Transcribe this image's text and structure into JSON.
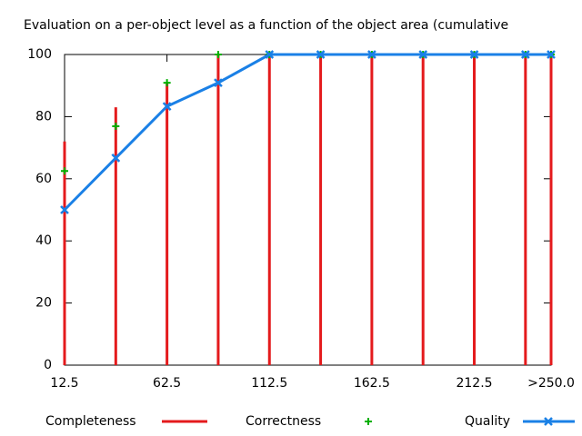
{
  "chart_data": {
    "type": "impulse-line",
    "title": "Evaluation on a per-object level as a function of the object area (cumulative",
    "x": [
      12.5,
      37.5,
      62.5,
      87.5,
      112.5,
      137.5,
      162.5,
      187.5,
      212.5,
      237.5,
      250
    ],
    "xlim": [
      12.5,
      250
    ],
    "xticks": [
      12.5,
      62.5,
      112.5,
      162.5,
      212.5,
      {
        "value": 250,
        "label": ">250.0"
      }
    ],
    "ylim": [
      0,
      100
    ],
    "yticks": [
      0,
      20,
      40,
      60,
      80,
      100
    ],
    "legend": "bottom",
    "series": [
      {
        "name": "Completeness",
        "color": "#e41a1c",
        "style": "impulses",
        "values": [
          72,
          83,
          91,
          100,
          100,
          100,
          100,
          100,
          100,
          100,
          100
        ]
      },
      {
        "name": "Correctness",
        "color": "#00b000",
        "style": "points",
        "values": [
          62.5,
          76.9,
          90.9,
          100,
          100,
          100,
          100,
          100,
          100,
          100,
          100
        ]
      },
      {
        "name": "Quality",
        "color": "#1a80e6",
        "style": "linespoints",
        "values": [
          50,
          66.7,
          83.3,
          90.9,
          100,
          100,
          100,
          100,
          100,
          100,
          100
        ]
      }
    ]
  }
}
